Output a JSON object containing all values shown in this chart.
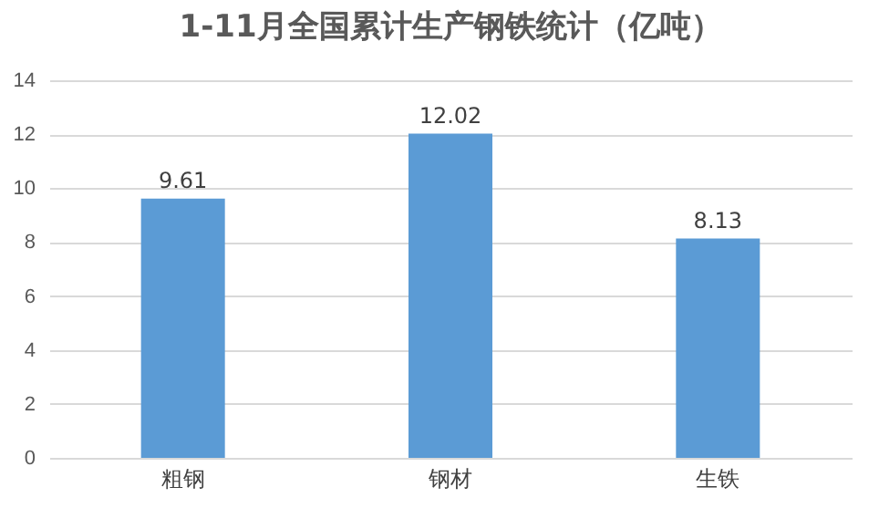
{
  "chart_data": {
    "type": "bar",
    "title": "1-11月全国累计生产钢铁统计（亿吨）",
    "categories": [
      "粗钢",
      "钢材",
      "生铁"
    ],
    "values": [
      9.61,
      12.02,
      8.13
    ],
    "color": "#5b9bd5",
    "ylim": [
      0,
      14
    ],
    "yticks": [
      0,
      2,
      4,
      6,
      8,
      10,
      12,
      14
    ],
    "grid": "y",
    "data_labels": true
  }
}
